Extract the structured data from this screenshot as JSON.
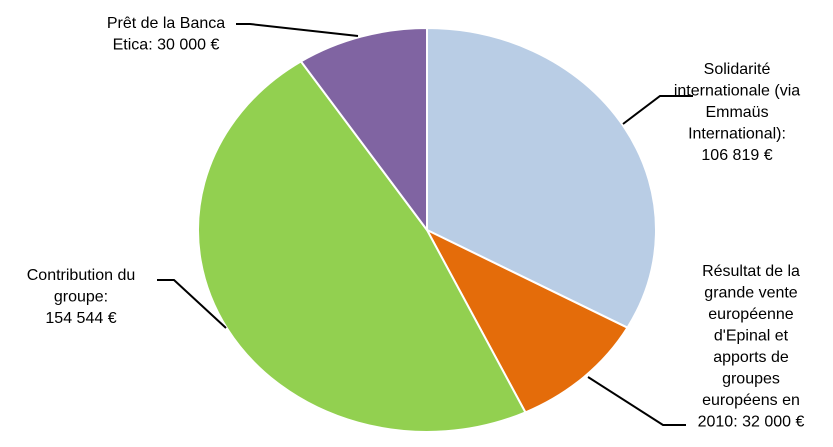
{
  "chart_data": {
    "type": "pie",
    "title": "",
    "total": 323363,
    "slices": [
      {
        "name": "Solidarité internationale (via Emmaüs International)",
        "value": 106819,
        "color": "#B9CDE5",
        "label_lines": [
          "Solidarité",
          "internationale (via",
          "Emmaüs",
          "International):",
          "106 819 €"
        ]
      },
      {
        "name": "Résultat de la grande vente européenne d'Epinal et apports de groupes européens en 2010",
        "value": 32000,
        "color": "#E46C0A",
        "label_lines": [
          "Résultat de la",
          "grande vente",
          "européenne",
          "d'Epinal et",
          "apports de",
          "groupes",
          "européens en",
          "2010: 32 000 €"
        ]
      },
      {
        "name": "Contribution du groupe",
        "value": 154544,
        "color": "#92D050",
        "label_lines": [
          "Contribution du",
          "groupe:",
          "154 544 €"
        ]
      },
      {
        "name": "Prêt de la Banca Etica",
        "value": 30000,
        "color": "#8064A2",
        "label_lines": [
          "Prêt de la Banca",
          "Etica: 30 000 €"
        ]
      }
    ],
    "start_angle_deg": 0,
    "direction": "clockwise",
    "legend": "none",
    "slice_border_color": "#FFFFFF",
    "leader_line_color": "#000000"
  }
}
